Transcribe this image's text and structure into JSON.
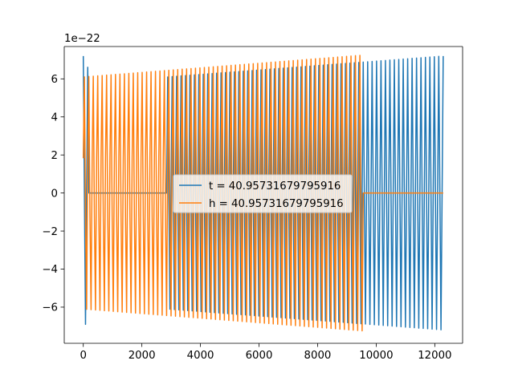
{
  "chart_data": {
    "type": "line",
    "title": "",
    "xlabel": "",
    "ylabel": "",
    "xlim": [
      -650,
      12950
    ],
    "ylim": [
      -7.9,
      7.7
    ],
    "y_offset_label": "1e−22",
    "x_ticks": [
      0,
      2000,
      4000,
      6000,
      8000,
      10000,
      12000
    ],
    "x_tick_labels": [
      "0",
      "2000",
      "4000",
      "6000",
      "8000",
      "10000",
      "12000"
    ],
    "y_ticks": [
      -6,
      -4,
      -2,
      0,
      2,
      4,
      6
    ],
    "y_tick_labels": [
      "−6",
      "−4",
      "−2",
      "0",
      "2",
      "4",
      "6"
    ],
    "grid": false,
    "legend_position": "center",
    "series": [
      {
        "name": "t = 40.95731679795916",
        "color": "#1f77b4",
        "x_range": [
          0,
          12288
        ],
        "cycles": 81,
        "segments": [
          {
            "from": 0,
            "to": 180,
            "kind": "burst",
            "amp": [
              7.2,
              6.5
            ]
          },
          {
            "from": 180,
            "to": 2880,
            "kind": "flat",
            "value": 0
          },
          {
            "from": 2880,
            "to": 12288,
            "kind": "oscillation",
            "amp": [
              6.1,
              7.2
            ]
          }
        ]
      },
      {
        "name": "h = 40.95731679795916",
        "color": "#ff7f0e",
        "x_range": [
          0,
          12288
        ],
        "cycles": 81,
        "segments": [
          {
            "from": 0,
            "to": 9550,
            "kind": "oscillation",
            "amp": [
              6.1,
              7.25
            ]
          },
          {
            "from": 9550,
            "to": 12288,
            "kind": "flat",
            "value": 0
          }
        ]
      }
    ]
  }
}
